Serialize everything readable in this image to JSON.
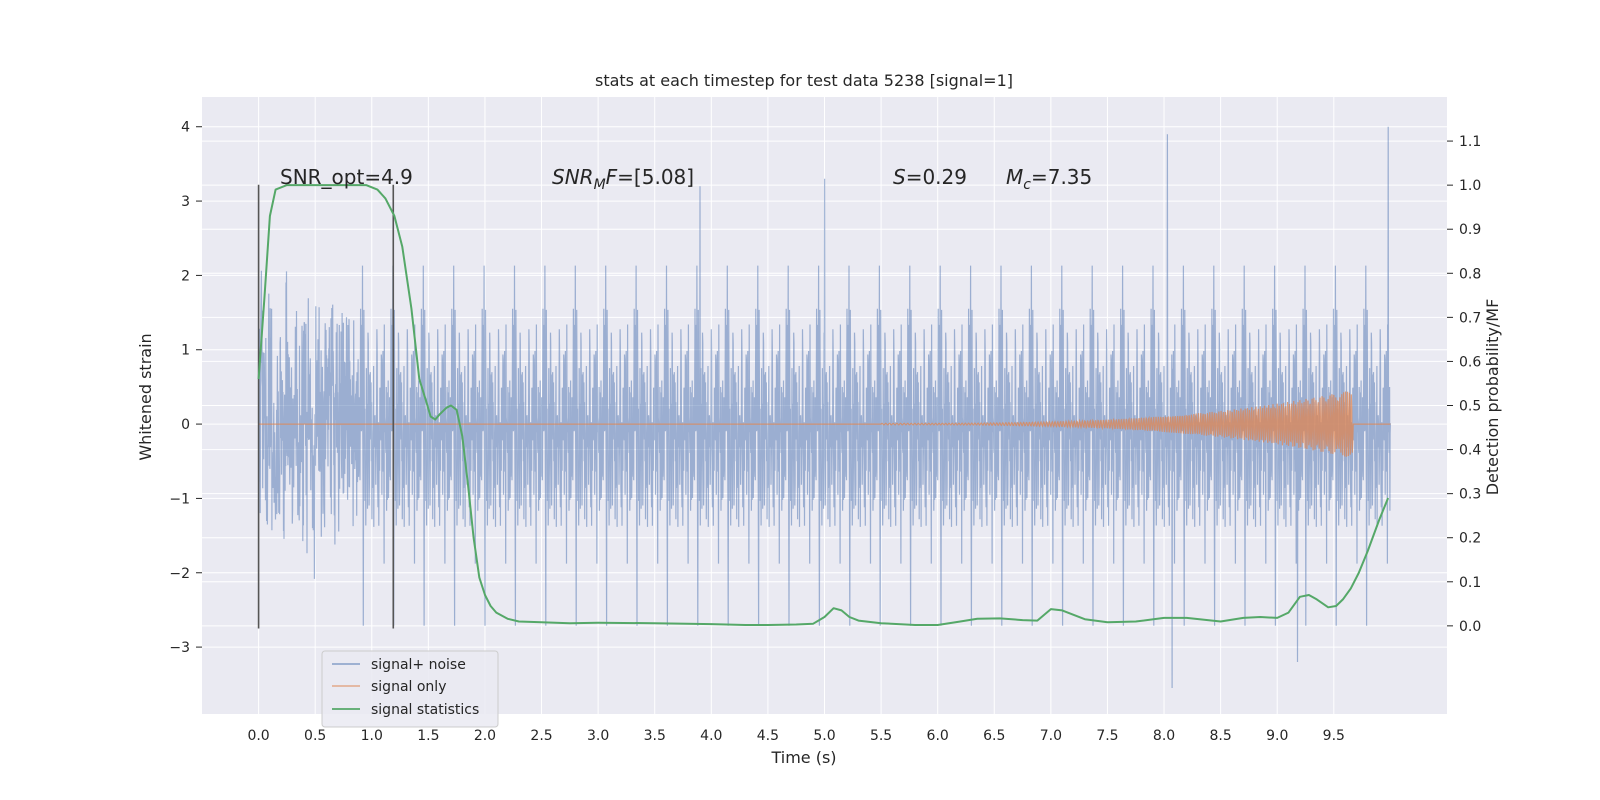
{
  "chart_data": {
    "type": "line",
    "title": "stats at each timestep for test data 5238 [signal=1]",
    "xlabel": "Time (s)",
    "ylabel_left": "Whitened strain",
    "ylabel_right": "Detection probability/MF",
    "xlim": [
      -0.5,
      10.5
    ],
    "ylim_left": [
      -3.9,
      4.4
    ],
    "ylim_right": [
      -0.2,
      1.2
    ],
    "x_ticks": [
      "0.0",
      "0.5",
      "1.0",
      "1.5",
      "2.0",
      "2.5",
      "3.0",
      "3.5",
      "4.0",
      "4.5",
      "5.0",
      "5.5",
      "6.0",
      "6.5",
      "7.0",
      "7.5",
      "8.0",
      "8.5",
      "9.0",
      "9.5"
    ],
    "y_left_ticks": [
      "−3",
      "−2",
      "−1",
      "0",
      "1",
      "2",
      "3",
      "4"
    ],
    "y_right_ticks": [
      "0.0",
      "0.1",
      "0.2",
      "0.3",
      "0.4",
      "0.5",
      "0.6",
      "0.7",
      "0.8",
      "0.9",
      "1.0",
      "1.1"
    ],
    "grid": true,
    "legend_position": "lower-left",
    "colors": {
      "background": "#eaeaf2",
      "grid": "#ffffff",
      "noise": "#4c72b0",
      "signal": "#dd8452",
      "statistics": "#55a868",
      "markers": "#555555"
    },
    "series": [
      {
        "name": "signal+ noise",
        "axis": "left",
        "description_values": "dense whitened strain noise, time 0-10 s",
        "envelope_typical": [
          -1.9,
          2.1
        ],
        "notable_peaks": [
          [
            8.03,
            3.9
          ],
          [
            9.98,
            4.0
          ],
          [
            8.07,
            -3.55
          ],
          [
            9.18,
            -3.2
          ],
          [
            5.0,
            3.3
          ],
          [
            3.9,
            3.2
          ]
        ]
      },
      {
        "name": "signal only",
        "axis": "left",
        "chirp_start": 5.5,
        "chirp_end": 9.67,
        "peak_amplitude": 0.45
      },
      {
        "name": "signal statistics",
        "axis": "right",
        "x": [
          0.0,
          0.05,
          0.1,
          0.15,
          0.25,
          0.4,
          0.6,
          0.8,
          0.95,
          1.05,
          1.12,
          1.2,
          1.27,
          1.35,
          1.42,
          1.48,
          1.52,
          1.56,
          1.6,
          1.66,
          1.7,
          1.75,
          1.8,
          1.85,
          1.9,
          1.95,
          2.0,
          2.05,
          2.1,
          2.2,
          2.3,
          2.5,
          2.75,
          3.0,
          3.5,
          4.0,
          4.3,
          4.5,
          4.75,
          4.9,
          5.0,
          5.08,
          5.15,
          5.22,
          5.3,
          5.5,
          5.8,
          6.0,
          6.2,
          6.35,
          6.55,
          6.75,
          6.88,
          7.0,
          7.1,
          7.3,
          7.5,
          7.75,
          8.0,
          8.2,
          8.5,
          8.7,
          8.85,
          9.0,
          9.1,
          9.2,
          9.28,
          9.35,
          9.45,
          9.52,
          9.58,
          9.65,
          9.72,
          9.8,
          9.9,
          9.98
        ],
        "values": [
          0.56,
          0.74,
          0.93,
          0.99,
          1.0,
          1.0,
          1.0,
          1.0,
          1.0,
          0.99,
          0.97,
          0.93,
          0.86,
          0.72,
          0.56,
          0.51,
          0.475,
          0.468,
          0.48,
          0.495,
          0.5,
          0.49,
          0.43,
          0.32,
          0.2,
          0.11,
          0.07,
          0.045,
          0.03,
          0.016,
          0.01,
          0.008,
          0.006,
          0.007,
          0.006,
          0.004,
          0.002,
          0.002,
          0.003,
          0.005,
          0.02,
          0.04,
          0.035,
          0.02,
          0.012,
          0.006,
          0.002,
          0.002,
          0.01,
          0.016,
          0.017,
          0.013,
          0.012,
          0.038,
          0.035,
          0.015,
          0.008,
          0.01,
          0.018,
          0.018,
          0.01,
          0.018,
          0.02,
          0.018,
          0.03,
          0.066,
          0.07,
          0.06,
          0.042,
          0.045,
          0.06,
          0.085,
          0.12,
          0.17,
          0.24,
          0.29
        ]
      }
    ],
    "vertical_markers": [
      {
        "x": 0.0,
        "ymin": -2.75,
        "ymax": 3.22
      },
      {
        "x": 1.19,
        "ymin": -2.75,
        "ymax": 3.22
      }
    ],
    "annotations": {
      "snr_opt": "SNR_opt=4.9",
      "snr_mf_value": "=[5.08]",
      "s_value": "=0.29",
      "mc_value": "=7.35"
    }
  }
}
